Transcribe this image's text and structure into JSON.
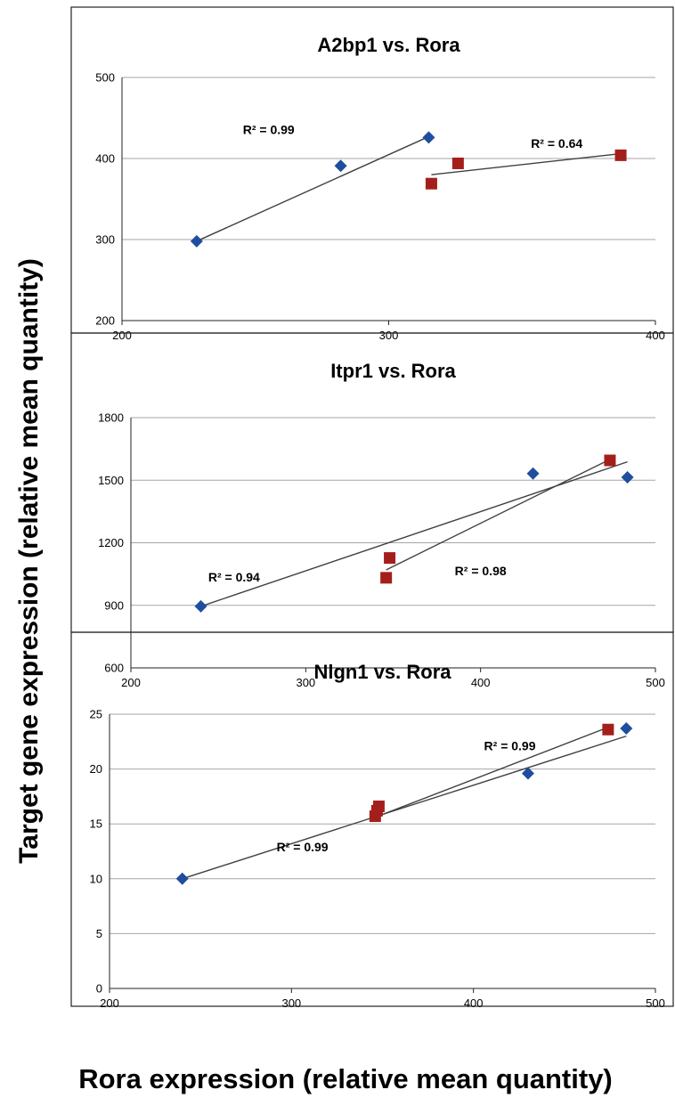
{
  "figure": {
    "ylabel": "Target gene expression (relative mean quantity)",
    "xlabel": "Rora expression (relative mean quantity)"
  },
  "colors": {
    "series_a": "#1f4e9e",
    "series_b": "#a41f1c",
    "gridline": "#a6a6a6",
    "trendline": "#404040",
    "frame": "#222222"
  },
  "chart_data": [
    {
      "type": "scatter",
      "title": "A2bp1 vs. Rora",
      "xlabel": "",
      "ylabel": "",
      "xlim": [
        200,
        400
      ],
      "ylim": [
        200,
        500
      ],
      "xticks": [
        200,
        300,
        400
      ],
      "yticks": [
        200,
        300,
        400,
        500
      ],
      "grid": true,
      "series": [
        {
          "marker": "diamond",
          "color": "#1f4e9e",
          "points": [
            [
              228,
              298
            ],
            [
              282,
              391
            ],
            [
              315,
              426
            ]
          ],
          "trendline": [
            [
              228,
              298
            ],
            [
              315,
              427
            ]
          ]
        },
        {
          "marker": "square",
          "color": "#a41f1c",
          "points": [
            [
              316,
              369
            ],
            [
              326,
              394
            ],
            [
              387,
              404
            ]
          ],
          "trendline": [
            [
              316,
              380
            ],
            [
              387,
              406
            ]
          ]
        }
      ],
      "annotations": [
        {
          "text": "R² = 0.99",
          "x": 255,
          "y": 430
        },
        {
          "text": "R² = 0.64",
          "x": 363,
          "y": 413
        }
      ]
    },
    {
      "type": "scatter",
      "title": "Itpr1 vs. Rora",
      "xlabel": "",
      "ylabel": "",
      "xlim": [
        200,
        500
      ],
      "ylim": [
        600,
        1800
      ],
      "xticks": [
        200,
        300,
        400,
        500
      ],
      "yticks": [
        600,
        900,
        1200,
        1500,
        1800
      ],
      "grid": true,
      "series": [
        {
          "marker": "diamond",
          "color": "#1f4e9e",
          "points": [
            [
              240,
              895
            ],
            [
              430,
              1532
            ],
            [
              484,
              1514
            ]
          ],
          "trendline": [
            [
              240,
              895
            ],
            [
              484,
              1588
            ]
          ]
        },
        {
          "marker": "square",
          "color": "#a41f1c",
          "points": [
            [
              346,
              1032
            ],
            [
              348,
              1127
            ],
            [
              474,
              1595
            ]
          ],
          "trendline": [
            [
              346,
              1070
            ],
            [
              474,
              1600
            ]
          ]
        }
      ],
      "annotations": [
        {
          "text": "R² = 0.94",
          "x": 259,
          "y": 1015
        },
        {
          "text": "R² = 0.98",
          "x": 400,
          "y": 1045
        }
      ]
    },
    {
      "type": "scatter",
      "title": "Nlgn1 vs. Rora",
      "xlabel": "",
      "ylabel": "",
      "xlim": [
        200,
        500
      ],
      "ylim": [
        0,
        25
      ],
      "xticks": [
        200,
        300,
        400,
        500
      ],
      "yticks": [
        0,
        5,
        10,
        15,
        20,
        25
      ],
      "grid": true,
      "series": [
        {
          "marker": "diamond",
          "color": "#1f4e9e",
          "points": [
            [
              240,
              10.0
            ],
            [
              430,
              19.6
            ],
            [
              484,
              23.7
            ]
          ],
          "trendline": [
            [
              240,
              10.0
            ],
            [
              484,
              23.0
            ]
          ]
        },
        {
          "marker": "square",
          "color": "#a41f1c",
          "points": [
            [
              346,
              15.7
            ],
            [
              347,
              16.2
            ],
            [
              348,
              16.6
            ],
            [
              474,
              23.6
            ]
          ],
          "trendline": [
            [
              346,
              15.6
            ],
            [
              474,
              23.8
            ]
          ]
        }
      ],
      "annotations": [
        {
          "text": "R² = 0.99",
          "x": 420,
          "y": 21.7
        },
        {
          "text": "R² = 0.99",
          "x": 306,
          "y": 12.5
        }
      ]
    }
  ]
}
